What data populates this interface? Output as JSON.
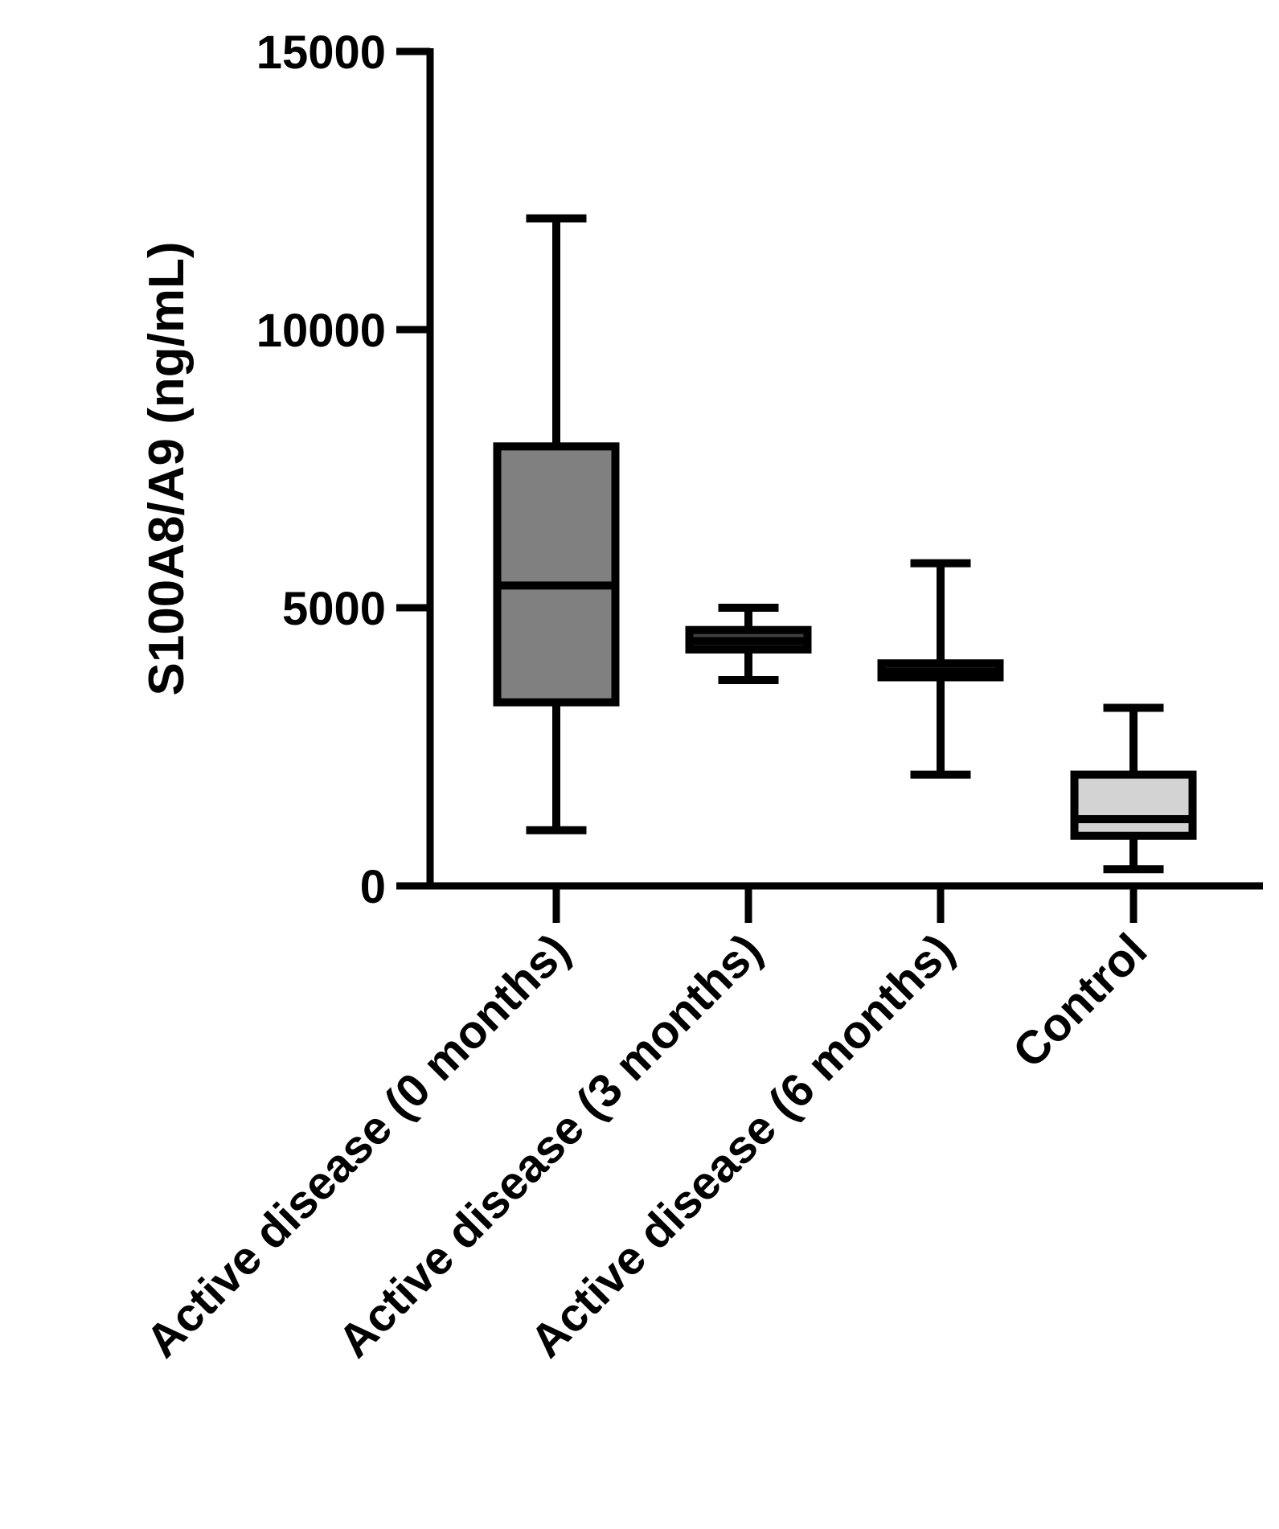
{
  "chart_data": {
    "type": "box",
    "ylabel": "S100A8/A9 (ng/mL)",
    "xlabel": "",
    "ylim": [
      0,
      15000
    ],
    "yticks": [
      0,
      5000,
      10000,
      15000
    ],
    "ytick_labels": [
      "0",
      "5000",
      "10000",
      "15000"
    ],
    "categories": [
      "Active disease (0 months)",
      "Active disease (3 months)",
      "Active disease (6 months)",
      "Control"
    ],
    "boxes": [
      {
        "category": "Active disease (0 months)",
        "min": 1000,
        "q1": 3300,
        "median": 5400,
        "q3": 7900,
        "max": 12000,
        "fill": "#808080"
      },
      {
        "category": "Active disease (3 months)",
        "min": 3700,
        "q1": 4250,
        "median": 4400,
        "q3": 4600,
        "max": 5000,
        "fill": "#404040"
      },
      {
        "category": "Active disease (6 months)",
        "min": 2000,
        "q1": 3750,
        "median": 3850,
        "q3": 4000,
        "max": 5800,
        "fill": "#404040"
      },
      {
        "category": "Control",
        "min": 300,
        "q1": 900,
        "median": 1200,
        "q3": 2000,
        "max": 3200,
        "fill": "#d3d3d3"
      }
    ],
    "grid": false,
    "legend": "none"
  }
}
